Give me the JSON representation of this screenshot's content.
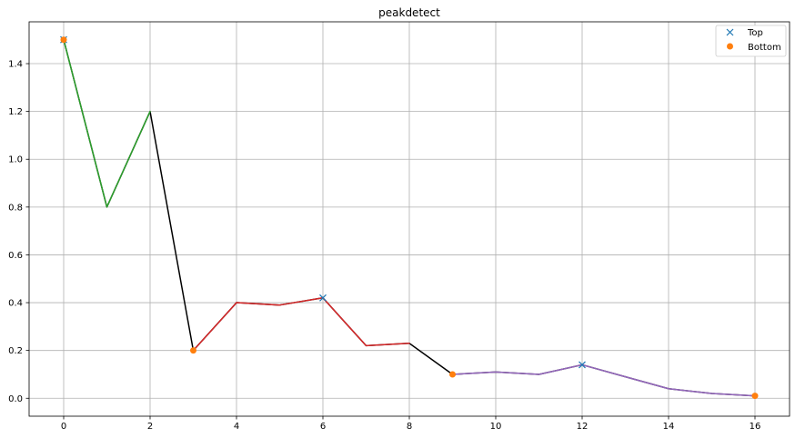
{
  "chart_data": {
    "type": "line",
    "title": "peakdetect",
    "xlabel": "",
    "ylabel": "",
    "xlim": [
      -0.8,
      16.8
    ],
    "ylim": [
      -0.075,
      1.575
    ],
    "xticks": [
      0,
      2,
      4,
      6,
      8,
      10,
      12,
      14,
      16
    ],
    "yticks": [
      0.0,
      0.2,
      0.4,
      0.6,
      0.8,
      1.0,
      1.2,
      1.4
    ],
    "grid": true,
    "legend_position": "top-right",
    "series": [
      {
        "color": "#000000",
        "x": [
          0,
          1,
          2,
          3,
          4,
          5,
          6,
          7,
          8,
          9,
          10,
          11,
          12,
          13,
          14,
          15,
          16
        ],
        "y": [
          1.5,
          0.8,
          1.2,
          0.2,
          0.4,
          0.39,
          0.42,
          0.22,
          0.23,
          0.1,
          0.11,
          0.1,
          0.14,
          0.09,
          0.04,
          0.02,
          0.01
        ]
      },
      {
        "color": "#2ca02c",
        "x": [
          0,
          1,
          2
        ],
        "y": [
          1.5,
          0.8,
          1.2
        ]
      },
      {
        "color": "#d62728",
        "x": [
          3,
          4,
          5,
          6,
          7,
          8
        ],
        "y": [
          0.2,
          0.4,
          0.39,
          0.42,
          0.22,
          0.23
        ]
      },
      {
        "color": "#9467bd",
        "x": [
          9,
          10,
          11,
          12,
          13,
          14,
          15,
          16
        ],
        "y": [
          0.1,
          0.11,
          0.1,
          0.14,
          0.09,
          0.04,
          0.02,
          0.01
        ]
      },
      {
        "name": "Top",
        "marker": "x",
        "color": "#1f77b4",
        "x": [
          0,
          6,
          12
        ],
        "y": [
          1.5,
          0.42,
          0.14
        ]
      },
      {
        "name": "Bottom",
        "marker": "o",
        "color": "#ff7f0e",
        "x": [
          0,
          3,
          9,
          16
        ],
        "y": [
          1.5,
          0.2,
          0.1,
          0.01
        ]
      }
    ]
  }
}
